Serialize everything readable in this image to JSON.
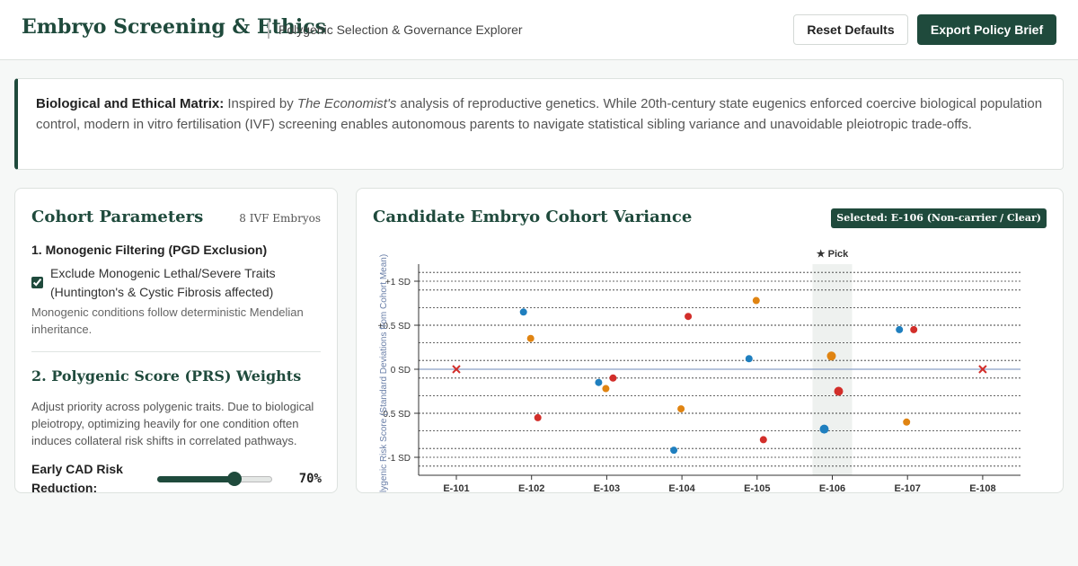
{
  "header": {
    "title": "Embryo Screening & Ethics",
    "subtitle": "Polygenic Selection & Governance Explorer",
    "reset_label": "Reset Defaults",
    "export_label": "Export Policy Brief"
  },
  "intro": {
    "bold": "Biological and Ethical Matrix:",
    "pre": " Inspired by ",
    "italic": "The Economist's",
    "post": " analysis of reproductive genetics. While 20th-century state eugenics enforced coercive biological population control, modern in vitro fertilisation (IVF) screening enables autonomous parents to navigate statistical sibling variance and unavoidable pleiotropic trade-offs."
  },
  "params": {
    "title": "Cohort Parameters",
    "count": "8 IVF Embryos",
    "section1_title": "1. Monogenic Filtering (PGD Exclusion)",
    "exclude_label": "Exclude Monogenic Lethal/Severe Traits (Huntington's & Cystic Fibrosis affected)",
    "exclude_checked": true,
    "monogenic_note": "Monogenic conditions follow deterministic Mendelian inheritance.",
    "section2_title": "2. Polygenic Score (PRS) Weights",
    "polygenic_note": "Adjust priority across polygenic traits. Due to biological pleiotropy, optimizing heavily for one condition often induces collateral risk shifts in correlated pathways.",
    "weights": [
      {
        "label": "Early CAD Risk Reduction:",
        "value": 70,
        "display": "70%"
      }
    ]
  },
  "chart": {
    "title": "Candidate Embryo Cohort Variance",
    "badge": "Selected: E-106 (Non-carrier / Clear)",
    "pick_label": "★ Pick"
  },
  "colors": {
    "brand": "#1f4a3c",
    "trait_blue": "#1f7fbf",
    "trait_orange": "#e08412",
    "trait_red": "#d22e2a",
    "highlight": "#eef1ef"
  },
  "chart_data": {
    "type": "scatter",
    "title": "Candidate Embryo Cohort Variance",
    "ylabel": "Polygenic Risk Score (Standard Deviations from Cohort Mean)",
    "ylim": [
      -1.2,
      1.2
    ],
    "grid": true,
    "categories": [
      "E-101",
      "E-102",
      "E-103",
      "E-104",
      "E-105",
      "E-106",
      "E-107",
      "E-108"
    ],
    "y_ticks": [
      {
        "value": 1,
        "label": "+1 SD"
      },
      {
        "value": 0.5,
        "label": "+0.5 SD"
      },
      {
        "value": 0,
        "label": "0 SD"
      },
      {
        "value": -0.5,
        "label": "-0.5 SD"
      },
      {
        "value": -1,
        "label": "-1 SD"
      }
    ],
    "selected": "E-106",
    "excluded": [
      "E-101",
      "E-108"
    ],
    "series": [
      {
        "color": "#1f7fbf",
        "values": [
          null,
          0.65,
          -0.15,
          -0.92,
          0.12,
          -0.68,
          0.45,
          null
        ]
      },
      {
        "color": "#e08412",
        "values": [
          null,
          0.35,
          -0.22,
          -0.45,
          0.78,
          0.15,
          -0.6,
          null
        ]
      },
      {
        "color": "#d22e2a",
        "values": [
          null,
          -0.55,
          -0.1,
          0.6,
          -0.8,
          -0.25,
          0.45,
          null
        ]
      }
    ]
  }
}
